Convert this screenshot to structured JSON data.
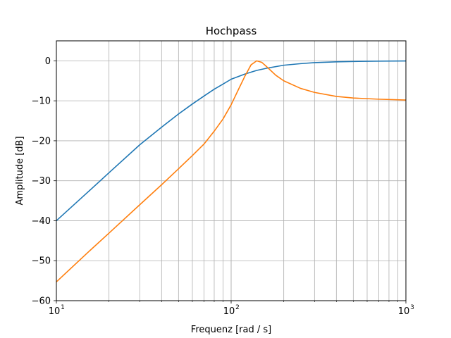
{
  "chart_data": {
    "type": "line",
    "title": "Hochpass",
    "xlabel": "Frequenz [rad / s]",
    "ylabel": "Amplitude [dB]",
    "xscale": "log",
    "xlim": [
      10,
      1000
    ],
    "ylim": [
      -60,
      5
    ],
    "grid": "both (major and minor)",
    "xticks": [
      {
        "value": 10,
        "base": "10",
        "exp": "1"
      },
      {
        "value": 100,
        "base": "10",
        "exp": "2"
      },
      {
        "value": 1000,
        "base": "10",
        "exp": "3"
      }
    ],
    "yticks": [
      {
        "value": 0,
        "label": "0"
      },
      {
        "value": -10,
        "label": "−10"
      },
      {
        "value": -20,
        "label": "−20"
      },
      {
        "value": -30,
        "label": "−30"
      },
      {
        "value": -40,
        "label": "−40"
      },
      {
        "value": -50,
        "label": "−50"
      },
      {
        "value": -60,
        "label": "−60"
      }
    ],
    "series": [
      {
        "color": "#1f77b4",
        "x": [
          10,
          15,
          20,
          30,
          40,
          50,
          60,
          70,
          80,
          90,
          100,
          120,
          140,
          160,
          200,
          250,
          300,
          400,
          500,
          700,
          1000
        ],
        "y": [
          -40.0,
          -33.0,
          -28.0,
          -21.0,
          -16.6,
          -13.3,
          -10.8,
          -8.8,
          -7.1,
          -5.8,
          -4.6,
          -3.3,
          -2.4,
          -1.85,
          -1.1,
          -0.7,
          -0.45,
          -0.25,
          -0.16,
          -0.08,
          -0.04
        ]
      },
      {
        "color": "#ff7f0e",
        "x": [
          10,
          15,
          20,
          30,
          40,
          50,
          60,
          70,
          80,
          90,
          100,
          110,
          120,
          130,
          140,
          150,
          160,
          180,
          200,
          250,
          300,
          400,
          500,
          700,
          1000
        ],
        "y": [
          -55.3,
          -48.1,
          -43.1,
          -36.0,
          -31.0,
          -27.0,
          -23.7,
          -20.8,
          -17.6,
          -14.5,
          -11.0,
          -7.2,
          -3.8,
          -1.0,
          0.0,
          -0.4,
          -1.5,
          -3.6,
          -5.0,
          -6.9,
          -7.9,
          -8.9,
          -9.3,
          -9.6,
          -9.8
        ]
      }
    ]
  }
}
